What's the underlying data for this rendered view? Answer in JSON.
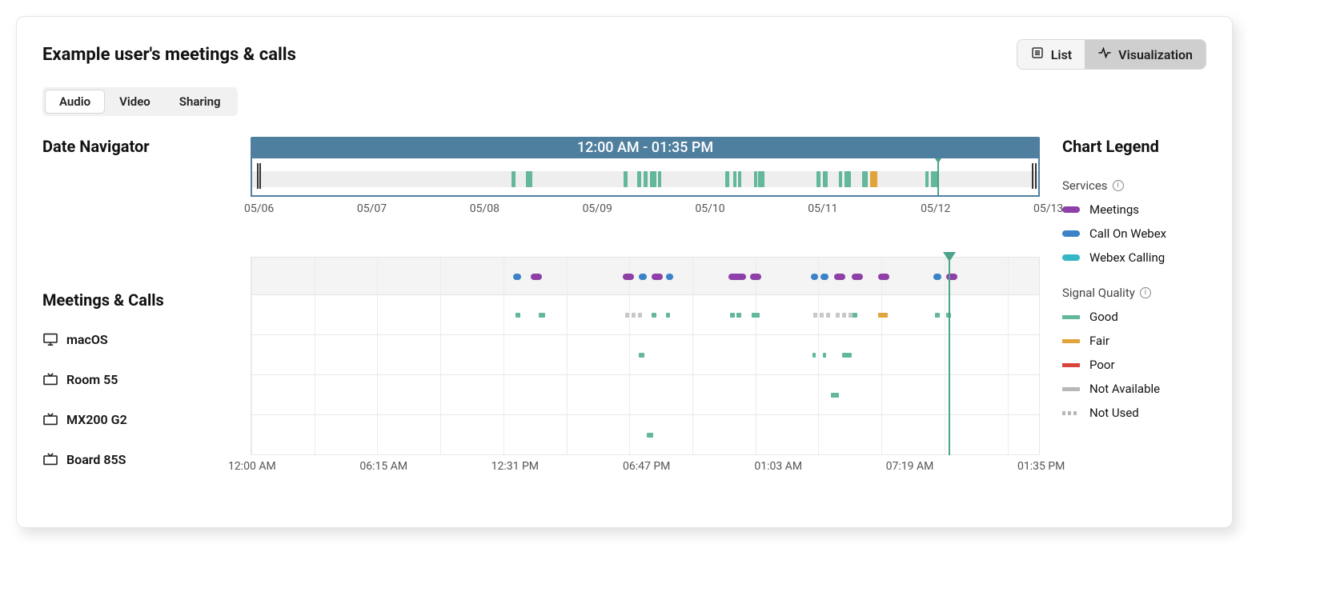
{
  "page_title": "Example user's meetings & calls",
  "view_toggle": {
    "list_label": "List",
    "viz_label": "Visualization",
    "active": "viz"
  },
  "tabs": {
    "items": [
      "Audio",
      "Video",
      "Sharing"
    ],
    "active_index": 0
  },
  "date_navigator": {
    "title": "Date Navigator",
    "range_label": "12:00 AM - 01:35 PM",
    "dates": [
      "05/06",
      "05/07",
      "05/08",
      "05/09",
      "05/10",
      "05/11",
      "05/12",
      "05/13"
    ],
    "marker_pct": 87.2,
    "end_ticks_pct": [
      0.6,
      0.9,
      99.2,
      99.6
    ],
    "events": [
      {
        "start_pct": 33.0,
        "width_pct": 0.5,
        "color": "#63b79a"
      },
      {
        "start_pct": 34.8,
        "width_pct": 0.5,
        "color": "#63b79a"
      },
      {
        "start_pct": 35.2,
        "width_pct": 0.4,
        "color": "#63b79a"
      },
      {
        "start_pct": 47.3,
        "width_pct": 0.5,
        "color": "#63b79a"
      },
      {
        "start_pct": 49.0,
        "width_pct": 0.5,
        "color": "#63b79a"
      },
      {
        "start_pct": 49.8,
        "width_pct": 0.5,
        "color": "#63b79a"
      },
      {
        "start_pct": 50.6,
        "width_pct": 0.8,
        "color": "#63b79a"
      },
      {
        "start_pct": 51.6,
        "width_pct": 0.4,
        "color": "#63b79a"
      },
      {
        "start_pct": 60.2,
        "width_pct": 0.5,
        "color": "#63b79a"
      },
      {
        "start_pct": 61.2,
        "width_pct": 0.4,
        "color": "#63b79a"
      },
      {
        "start_pct": 61.8,
        "width_pct": 0.4,
        "color": "#63b79a"
      },
      {
        "start_pct": 63.8,
        "width_pct": 0.5,
        "color": "#63b79a"
      },
      {
        "start_pct": 64.4,
        "width_pct": 0.8,
        "color": "#63b79a"
      },
      {
        "start_pct": 71.8,
        "width_pct": 0.5,
        "color": "#63b79a"
      },
      {
        "start_pct": 72.6,
        "width_pct": 0.6,
        "color": "#63b79a"
      },
      {
        "start_pct": 74.6,
        "width_pct": 0.5,
        "color": "#63b79a"
      },
      {
        "start_pct": 75.4,
        "width_pct": 0.8,
        "color": "#63b79a"
      },
      {
        "start_pct": 77.6,
        "width_pct": 0.7,
        "color": "#63b79a"
      },
      {
        "start_pct": 78.6,
        "width_pct": 0.9,
        "color": "#e0a43a"
      },
      {
        "start_pct": 85.6,
        "width_pct": 0.5,
        "color": "#63b79a"
      },
      {
        "start_pct": 86.4,
        "width_pct": 0.5,
        "color": "#63b79a"
      },
      {
        "start_pct": 86.9,
        "width_pct": 0.5,
        "color": "#63b79a"
      }
    ]
  },
  "meetings_calls": {
    "title": "Meetings & Calls",
    "time_ticks": [
      "12:00 AM",
      "06:15 AM",
      "12:31 PM",
      "06:47 PM",
      "01:03 AM",
      "07:19 AM",
      "01:35 PM"
    ],
    "grid_pct": [
      0,
      8.0,
      16.0,
      24.0,
      32.0,
      40.0,
      48.0,
      56.0,
      64.0,
      72.0,
      80.0,
      88.0,
      96.0
    ],
    "time_label_pct": [
      0,
      16.67,
      33.33,
      50.0,
      66.67,
      83.33,
      100
    ],
    "marker_pct": 88.4,
    "header_pills": [
      {
        "start_pct": 33.2,
        "width_pct": 1.0,
        "color": "#3b82c7"
      },
      {
        "start_pct": 35.5,
        "width_pct": 1.4,
        "color": "#8e3fa8"
      },
      {
        "start_pct": 47.2,
        "width_pct": 1.4,
        "color": "#8e3fa8"
      },
      {
        "start_pct": 49.2,
        "width_pct": 1.0,
        "color": "#3b82c7"
      },
      {
        "start_pct": 50.8,
        "width_pct": 1.4,
        "color": "#8e3fa8"
      },
      {
        "start_pct": 52.6,
        "width_pct": 1.0,
        "color": "#3b82c7"
      },
      {
        "start_pct": 60.6,
        "width_pct": 2.2,
        "color": "#8e3fa8"
      },
      {
        "start_pct": 63.3,
        "width_pct": 1.4,
        "color": "#8e3fa8"
      },
      {
        "start_pct": 71.0,
        "width_pct": 1.0,
        "color": "#3b82c7"
      },
      {
        "start_pct": 72.3,
        "width_pct": 1.0,
        "color": "#3b82c7"
      },
      {
        "start_pct": 74.0,
        "width_pct": 1.4,
        "color": "#8e3fa8"
      },
      {
        "start_pct": 76.2,
        "width_pct": 1.4,
        "color": "#8e3fa8"
      },
      {
        "start_pct": 79.6,
        "width_pct": 1.4,
        "color": "#8e3fa8"
      },
      {
        "start_pct": 86.6,
        "width_pct": 1.0,
        "color": "#3b82c7"
      },
      {
        "start_pct": 88.2,
        "width_pct": 1.4,
        "color": "#8e3fa8"
      }
    ],
    "devices": [
      {
        "name": "macOS",
        "icon": "monitor",
        "marks": [
          {
            "kind": "bar",
            "start_pct": 33.5,
            "width_pct": 0.6,
            "color": "#63b79a"
          },
          {
            "kind": "bar",
            "start_pct": 36.5,
            "width_pct": 0.8,
            "color": "#63b79a"
          },
          {
            "kind": "dots",
            "start_pct": 47.5,
            "color": "#c8c8c8"
          },
          {
            "kind": "bar",
            "start_pct": 50.8,
            "width_pct": 0.6,
            "color": "#63b79a"
          },
          {
            "kind": "bar",
            "start_pct": 52.6,
            "width_pct": 0.6,
            "color": "#63b79a"
          },
          {
            "kind": "bar",
            "start_pct": 60.8,
            "width_pct": 0.6,
            "color": "#63b79a"
          },
          {
            "kind": "bar",
            "start_pct": 61.6,
            "width_pct": 0.6,
            "color": "#63b79a"
          },
          {
            "kind": "bar",
            "start_pct": 63.5,
            "width_pct": 1.0,
            "color": "#63b79a"
          },
          {
            "kind": "dots",
            "start_pct": 71.3,
            "color": "#c8c8c8"
          },
          {
            "kind": "dots",
            "start_pct": 74.2,
            "color": "#c8c8c8"
          },
          {
            "kind": "bar",
            "start_pct": 76.3,
            "width_pct": 0.6,
            "color": "#63b79a"
          },
          {
            "kind": "bar",
            "start_pct": 79.6,
            "width_pct": 1.2,
            "color": "#e0a43a"
          },
          {
            "kind": "bar",
            "start_pct": 86.8,
            "width_pct": 0.6,
            "color": "#63b79a"
          },
          {
            "kind": "bar",
            "start_pct": 88.2,
            "width_pct": 0.6,
            "color": "#63b79a"
          }
        ]
      },
      {
        "name": "Room 55",
        "icon": "tv",
        "marks": [
          {
            "kind": "bar",
            "start_pct": 49.2,
            "width_pct": 0.7,
            "color": "#63b79a"
          },
          {
            "kind": "bar",
            "start_pct": 71.2,
            "width_pct": 0.4,
            "color": "#63b79a"
          },
          {
            "kind": "bar",
            "start_pct": 72.6,
            "width_pct": 0.4,
            "color": "#63b79a"
          },
          {
            "kind": "bar",
            "start_pct": 75.0,
            "width_pct": 1.2,
            "color": "#63b79a"
          }
        ]
      },
      {
        "name": "MX200 G2",
        "icon": "tv",
        "marks": [
          {
            "kind": "bar",
            "start_pct": 73.6,
            "width_pct": 1.0,
            "color": "#63b79a"
          }
        ]
      },
      {
        "name": "Board 85S",
        "icon": "tv",
        "marks": [
          {
            "kind": "bar",
            "start_pct": 50.2,
            "width_pct": 0.8,
            "color": "#63b79a"
          }
        ]
      }
    ]
  },
  "legend": {
    "title": "Chart Legend",
    "services_label": "Services",
    "quality_label": "Signal Quality",
    "services": [
      {
        "label": "Meetings",
        "color": "#8e3fa8"
      },
      {
        "label": "Call On Webex",
        "color": "#3b82c7"
      },
      {
        "label": "Webex Calling",
        "color": "#35b7c6"
      }
    ],
    "quality": [
      {
        "label": "Good",
        "color": "#63b79a",
        "kind": "bar"
      },
      {
        "label": "Fair",
        "color": "#e0a43a",
        "kind": "bar"
      },
      {
        "label": "Poor",
        "color": "#d9453d",
        "kind": "bar"
      },
      {
        "label": "Not Available",
        "color": "#b8b8b8",
        "kind": "bar"
      },
      {
        "label": "Not Used",
        "color": "#b8b8b8",
        "kind": "dots"
      }
    ]
  },
  "colors": {
    "nav_brand": "#4f7f9e",
    "marker": "#4aa38a",
    "grid": "#ececec",
    "track": "#eeeeee"
  }
}
